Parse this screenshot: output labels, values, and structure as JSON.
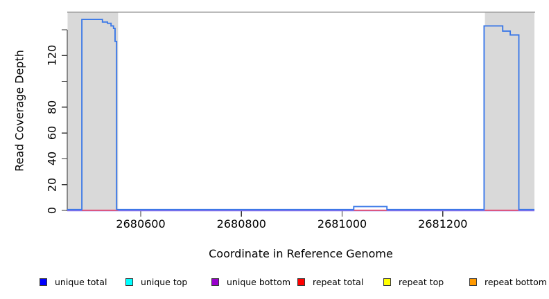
{
  "chart_data": {
    "type": "line",
    "title": "",
    "xlabel": "Coordinate in Reference Genome",
    "ylabel": "Read Coverage Depth",
    "xlim": [
      2680454,
      2681382
    ],
    "ylim": [
      0,
      154
    ],
    "grid": false,
    "legend_position": "bottom",
    "x_ticks": [
      {
        "value": 2680600,
        "label": "2680600"
      },
      {
        "value": 2680800,
        "label": "2680800"
      },
      {
        "value": 2681000,
        "label": "2681000"
      },
      {
        "value": 2681200,
        "label": "2681200"
      }
    ],
    "y_ticks": [
      {
        "value": 0,
        "label": "0"
      },
      {
        "value": 20,
        "label": "20"
      },
      {
        "value": 40,
        "label": "40"
      },
      {
        "value": 60,
        "label": "60"
      },
      {
        "value": 80,
        "label": "80"
      },
      {
        "value": 100,
        "label": ""
      },
      {
        "value": 120,
        "label": "120"
      },
      {
        "value": 140,
        "label": ""
      }
    ],
    "shaded_repeat_regions": [
      {
        "start": 2680454,
        "end": 2680555
      },
      {
        "start": 2681283,
        "end": 2681382
      }
    ],
    "series": [
      {
        "name": "unique total",
        "type": "step",
        "color": "#3b78e7",
        "points": [
          [
            2680454,
            0
          ],
          [
            2680483,
            0
          ],
          [
            2680483,
            148
          ],
          [
            2680524,
            148
          ],
          [
            2680524,
            146
          ],
          [
            2680534,
            146
          ],
          [
            2680534,
            145
          ],
          [
            2680541,
            145
          ],
          [
            2680541,
            143
          ],
          [
            2680546,
            143
          ],
          [
            2680546,
            141
          ],
          [
            2680549,
            141
          ],
          [
            2680549,
            131
          ],
          [
            2680552,
            131
          ],
          [
            2680552,
            0
          ],
          [
            2681023,
            0
          ],
          [
            2681023,
            3
          ],
          [
            2681089,
            3
          ],
          [
            2681089,
            0
          ],
          [
            2681282,
            0
          ],
          [
            2681282,
            143
          ],
          [
            2681319,
            143
          ],
          [
            2681319,
            139
          ],
          [
            2681334,
            139
          ],
          [
            2681334,
            136
          ],
          [
            2681351,
            136
          ],
          [
            2681351,
            0
          ],
          [
            2681382,
            0
          ]
        ]
      },
      {
        "name": "unique bottom",
        "type": "baseline",
        "color": "#8a6ded",
        "value": 0,
        "segments": [
          [
            2680454,
            2681382
          ]
        ]
      },
      {
        "name": "repeat total",
        "type": "baseline",
        "color": "#e25677",
        "value": 0,
        "segments": [
          [
            2680483,
            2680555
          ],
          [
            2681023,
            2681089
          ],
          [
            2681283,
            2681350
          ]
        ]
      }
    ],
    "legend": [
      {
        "label": "unique total",
        "color": "#0000ff"
      },
      {
        "label": "unique top",
        "color": "#00ffff"
      },
      {
        "label": "unique bottom",
        "color": "#9900cc"
      },
      {
        "label": "repeat total",
        "color": "#ff0000"
      },
      {
        "label": "repeat top",
        "color": "#ffff00"
      },
      {
        "label": "repeat bottom",
        "color": "#ff9900"
      }
    ]
  },
  "colors": {
    "shade": "#d9d9d9",
    "plot_top_border": "#969696",
    "axis": "#333333",
    "text": "#000000"
  }
}
